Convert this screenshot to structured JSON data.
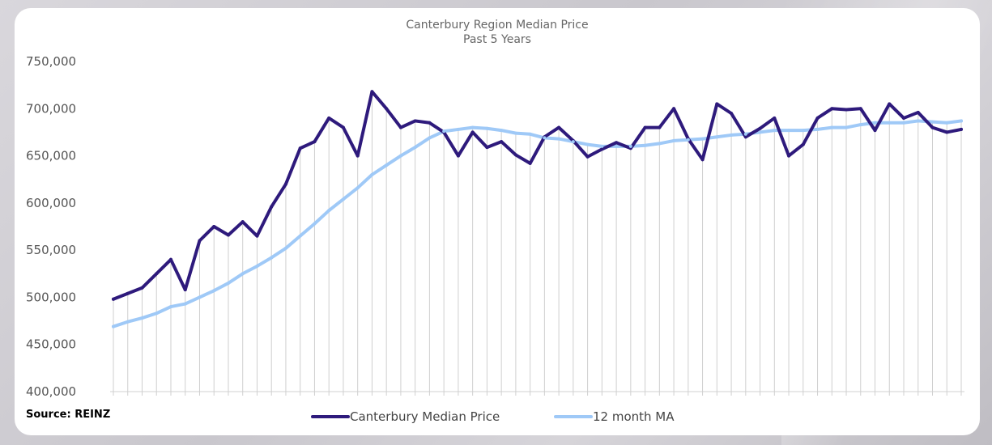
{
  "chart_data": {
    "type": "line",
    "title": "Canterbury Region Median Price",
    "subtitle": "Past 5 Years",
    "xlabel": "",
    "ylabel": "",
    "ylim": [
      400000,
      750000
    ],
    "yticks": [
      "400,000",
      "450,000",
      "500,000",
      "550,000",
      "600,000",
      "650,000",
      "700,000",
      "750,000"
    ],
    "ytick_values": [
      400000,
      450000,
      500000,
      550000,
      600000,
      650000,
      700000,
      750000
    ],
    "grid": "vertical drop lines at each month",
    "legend_position": "bottom",
    "series": [
      {
        "name": "Canterbury Median Price",
        "color": "#2e1a7c",
        "values": [
          498000,
          504000,
          510000,
          525000,
          540000,
          508000,
          560000,
          575000,
          566000,
          580000,
          565000,
          596000,
          620000,
          658000,
          665000,
          690000,
          680000,
          650000,
          718000,
          700000,
          680000,
          687000,
          685000,
          675000,
          650000,
          675000,
          659000,
          665000,
          651000,
          642000,
          670000,
          680000,
          666000,
          649000,
          657000,
          664000,
          658000,
          680000,
          680000,
          700000,
          668000,
          646000,
          705000,
          695000,
          670000,
          679000,
          690000,
          650000,
          662000,
          690000,
          700000,
          699000,
          700000,
          677000,
          705000,
          690000,
          696000,
          680000,
          675000,
          678000
        ]
      },
      {
        "name": "12 month MA",
        "color": "#9fc9f7",
        "values": [
          469000,
          474000,
          478000,
          483000,
          490000,
          493000,
          500000,
          507000,
          515000,
          525000,
          533000,
          542000,
          552000,
          565000,
          578000,
          592000,
          604000,
          616000,
          630000,
          640000,
          650000,
          659000,
          669000,
          676000,
          678000,
          680000,
          679000,
          677000,
          674000,
          673000,
          669000,
          668000,
          665000,
          662000,
          660000,
          660000,
          660000,
          661000,
          663000,
          666000,
          667000,
          668000,
          670000,
          672000,
          673000,
          675000,
          677000,
          677000,
          677000,
          678000,
          680000,
          680000,
          683000,
          685000,
          685000,
          685000,
          687000,
          686000,
          685000,
          687000
        ]
      }
    ],
    "source": "Source: REINZ"
  }
}
